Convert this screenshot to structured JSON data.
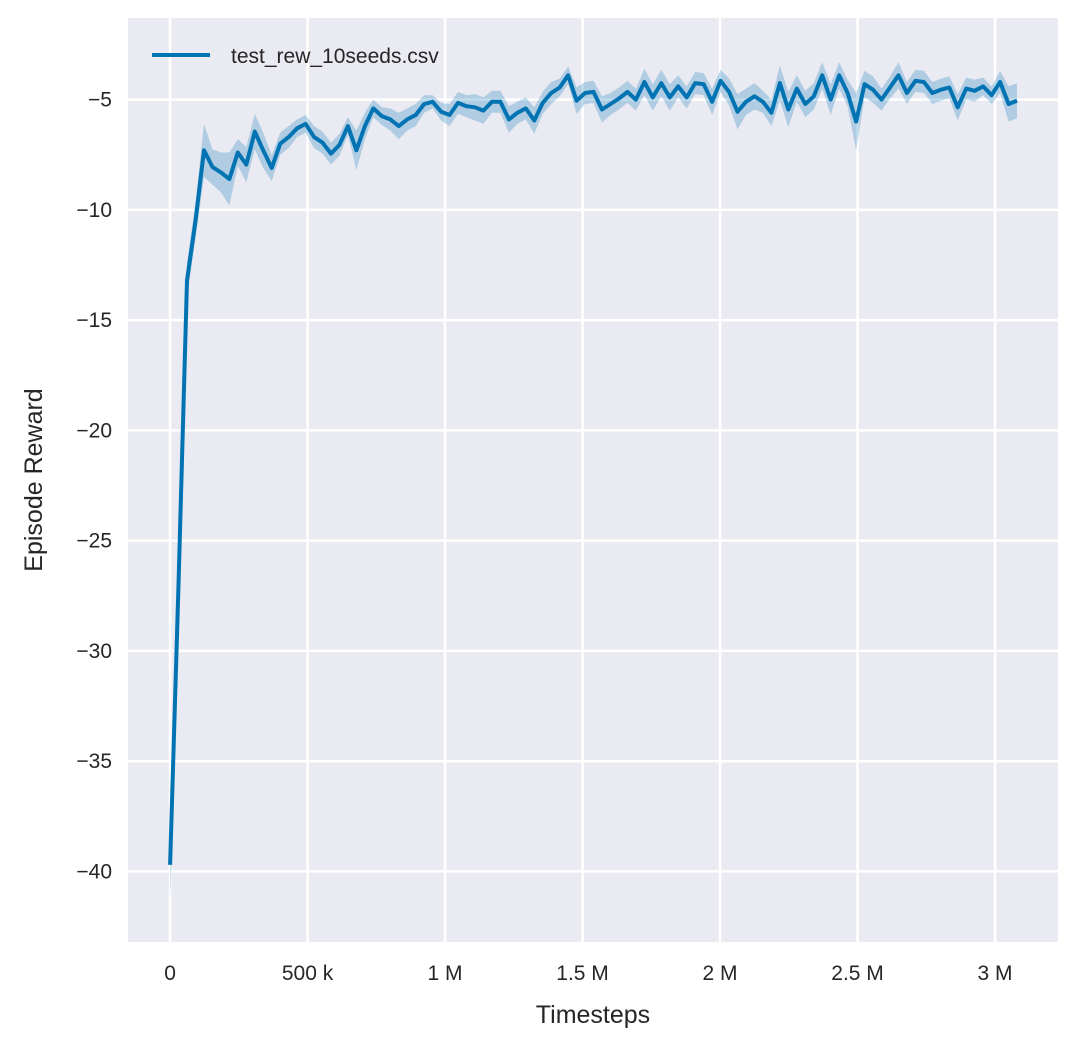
{
  "chart_data": {
    "type": "line",
    "title": "",
    "xlabel": "Timesteps",
    "ylabel": "Episode Reward",
    "xlim": [
      -153000,
      3229000
    ],
    "ylim": [
      -43.2,
      -1.3
    ],
    "grid": true,
    "legend_position": "top-left",
    "background_color": "#eaeaf2",
    "x_ticks": [
      0,
      500000,
      1000000,
      1500000,
      2000000,
      2500000,
      3000000
    ],
    "x_tick_labels": [
      "0",
      "500 k",
      "1 M",
      "1.5 M",
      "2 M",
      "2.5 M",
      "3 M"
    ],
    "y_ticks": [
      -40,
      -35,
      -30,
      -25,
      -20,
      -15,
      -10,
      -5
    ],
    "y_tick_labels": [
      "−40",
      "−35",
      "−30",
      "−25",
      "−20",
      "−15",
      "−10",
      "−5"
    ],
    "series": [
      {
        "name": "test_rew_10seeds.csv",
        "color": "#0173b2",
        "x": [
          0,
          30800,
          61600,
          92400,
          123200,
          154000,
          184800,
          215600,
          246400,
          277200,
          308000,
          338800,
          369600,
          400400,
          431200,
          462000,
          492800,
          523600,
          554400,
          585200,
          616000,
          646800,
          677600,
          708400,
          739200,
          770000,
          800800,
          831600,
          862400,
          893200,
          924000,
          954800,
          985600,
          1016400,
          1047200,
          1078000,
          1108800,
          1139600,
          1170400,
          1201200,
          1232000,
          1262800,
          1293600,
          1324400,
          1355200,
          1386000,
          1416800,
          1447600,
          1478400,
          1509200,
          1540000,
          1570800,
          1601600,
          1632400,
          1663200,
          1694000,
          1724800,
          1755600,
          1786400,
          1817200,
          1848000,
          1878800,
          1909600,
          1940400,
          1971200,
          2002000,
          2032800,
          2063600,
          2094400,
          2125200,
          2156000,
          2186800,
          2217600,
          2248400,
          2279200,
          2310000,
          2340800,
          2371600,
          2402400,
          2433200,
          2464000,
          2494800,
          2525600,
          2556400,
          2587200,
          2618000,
          2648800,
          2679600,
          2710400,
          2741200,
          2772000,
          2802800,
          2833600,
          2864400,
          2895200,
          2926000,
          2956800,
          2987600,
          3018400,
          3049200,
          3080000
        ],
        "y": [
          -39.7,
          -27,
          -13.2,
          -10.5,
          -7.3,
          -8.05,
          -8.3,
          -8.6,
          -7.4,
          -7.95,
          -6.45,
          -7.3,
          -8.1,
          -7.0,
          -6.7,
          -6.3,
          -6.1,
          -6.7,
          -6.95,
          -7.45,
          -7.05,
          -6.2,
          -7.3,
          -6.2,
          -5.4,
          -5.75,
          -5.9,
          -6.2,
          -5.9,
          -5.7,
          -5.2,
          -5.1,
          -5.55,
          -5.7,
          -5.15,
          -5.3,
          -5.35,
          -5.5,
          -5.1,
          -5.1,
          -5.9,
          -5.6,
          -5.4,
          -5.95,
          -5.15,
          -4.7,
          -4.45,
          -3.9,
          -5.05,
          -4.7,
          -4.65,
          -5.45,
          -5.2,
          -4.95,
          -4.65,
          -5.0,
          -4.2,
          -4.9,
          -4.25,
          -4.9,
          -4.4,
          -4.9,
          -4.25,
          -4.3,
          -5.1,
          -4.15,
          -4.65,
          -5.55,
          -5.1,
          -4.85,
          -5.1,
          -5.6,
          -4.25,
          -5.45,
          -4.5,
          -5.2,
          -4.85,
          -3.9,
          -5.0,
          -3.9,
          -4.7,
          -6.0,
          -4.3,
          -4.55,
          -5.0,
          -4.45,
          -3.9,
          -4.7,
          -4.15,
          -4.2,
          -4.7,
          -4.55,
          -4.45,
          -5.35,
          -4.5,
          -4.6,
          -4.4,
          -4.8,
          -4.2,
          -5.2,
          -5.05
        ],
        "ci_halfwidth": [
          1.7,
          2.5,
          0.8,
          0.8,
          1.2,
          0.8,
          0.9,
          1.2,
          0.6,
          0.8,
          0.8,
          0.8,
          0.6,
          0.5,
          0.5,
          0.4,
          0.4,
          0.5,
          0.5,
          0.5,
          0.5,
          0.4,
          0.9,
          0.6,
          0.4,
          0.4,
          0.5,
          0.6,
          0.5,
          0.5,
          0.4,
          0.3,
          0.4,
          0.5,
          0.5,
          0.5,
          0.6,
          0.6,
          0.5,
          0.5,
          0.6,
          0.5,
          0.5,
          0.6,
          0.5,
          0.5,
          0.4,
          0.4,
          0.6,
          0.5,
          0.5,
          0.6,
          0.5,
          0.5,
          0.5,
          0.5,
          0.6,
          0.6,
          0.6,
          0.6,
          0.5,
          0.5,
          0.5,
          0.5,
          0.6,
          0.5,
          0.6,
          0.8,
          0.6,
          0.6,
          0.5,
          0.6,
          0.8,
          0.8,
          0.6,
          0.6,
          0.6,
          0.6,
          0.7,
          0.6,
          0.6,
          1.3,
          0.6,
          0.6,
          0.5,
          0.5,
          0.6,
          0.5,
          0.5,
          0.5,
          0.5,
          0.5,
          0.5,
          0.6,
          0.5,
          0.5,
          0.4,
          0.4,
          0.5,
          0.8,
          0.8
        ]
      }
    ]
  }
}
